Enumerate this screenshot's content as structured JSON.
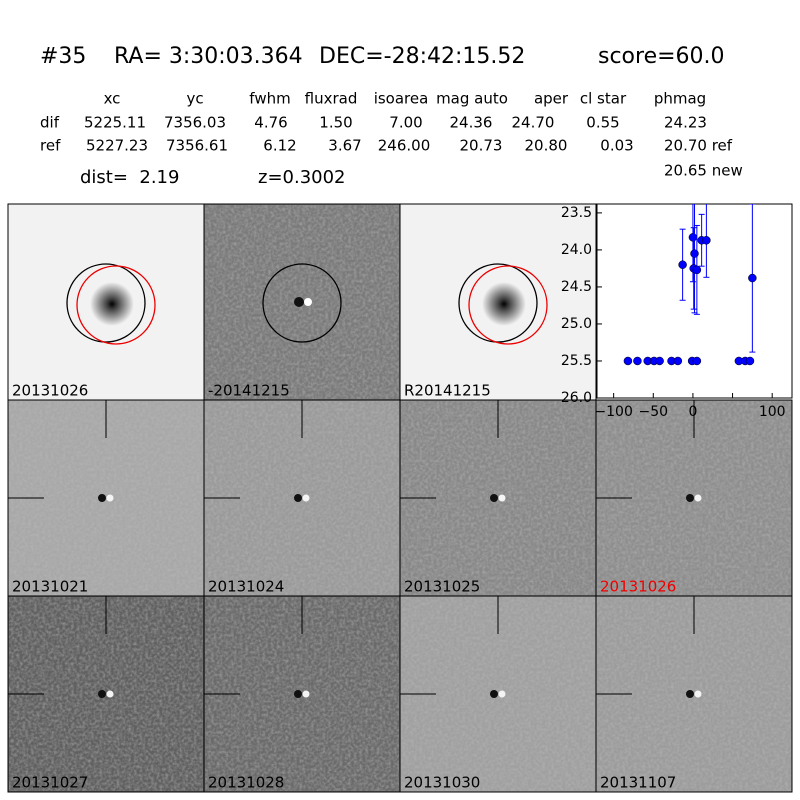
{
  "header": {
    "id": "#35",
    "ra": "RA= 3:30:03.364",
    "dec": "DEC=-28:42:15.52",
    "score": "score=60.0"
  },
  "table": {
    "columns": [
      "xc",
      "yc",
      "fwhm",
      "fluxrad",
      "isoarea",
      "mag auto",
      "aper",
      "cl star",
      "phmag"
    ],
    "rows": [
      [
        "dif",
        "5225.11",
        "7356.03",
        "4.76",
        "1.50",
        "7.00",
        "24.36",
        "24.70",
        "0.55",
        "24.23"
      ],
      [
        "ref",
        "5227.23",
        "7356.61",
        "6.12",
        "3.67",
        "246.00",
        "20.73",
        "20.80",
        "0.03",
        "20.70 ref"
      ]
    ],
    "extra": "20.65 new"
  },
  "dist": "dist=  2.19",
  "z": "z=0.3002",
  "panels": [
    "20131026",
    "-20141215",
    "R20141215",
    "20131021",
    "20131024",
    "20131025",
    "20131026",
    "20131027",
    "20131028",
    "20131030",
    "20131107"
  ],
  "chart_data": {
    "type": "scatter",
    "color": "#0000ff",
    "invert_y": true,
    "xlim": [
      -121,
      125
    ],
    "ylim": [
      26.0,
      23.38
    ],
    "xticks": [
      {
        "value": -100,
        "label": "−100"
      },
      {
        "value": -50,
        "label": "−50"
      },
      0,
      50,
      100
    ],
    "yticks": [
      23.5,
      {
        "value": 24,
        "label": "24.0"
      },
      24.5,
      {
        "value": 25,
        "label": "25.0"
      },
      25.5,
      {
        "value": 26,
        "label": "26.0"
      }
    ],
    "series": [
      {
        "x": [
          -82,
          -70,
          -57,
          -49,
          -42,
          -27,
          -19,
          -1,
          5,
          58,
          66,
          72,
          -13,
          0,
          2,
          1,
          5,
          11,
          17,
          75
        ],
        "y": [
          25.5,
          25.5,
          25.5,
          25.5,
          25.5,
          25.5,
          25.5,
          25.5,
          25.5,
          25.5,
          25.5,
          25.5,
          24.2,
          23.83,
          24.05,
          24.25,
          24.27,
          23.87,
          23.87,
          24.38
        ],
        "errors": [
          0.03,
          0.03,
          0.03,
          0.03,
          0.03,
          0.03,
          0.03,
          0.03,
          0.03,
          0.03,
          0.03,
          0.03,
          0.48,
          0.6,
          0.8,
          0.55,
          0.6,
          0.35,
          0.5,
          1.0
        ]
      }
    ]
  }
}
